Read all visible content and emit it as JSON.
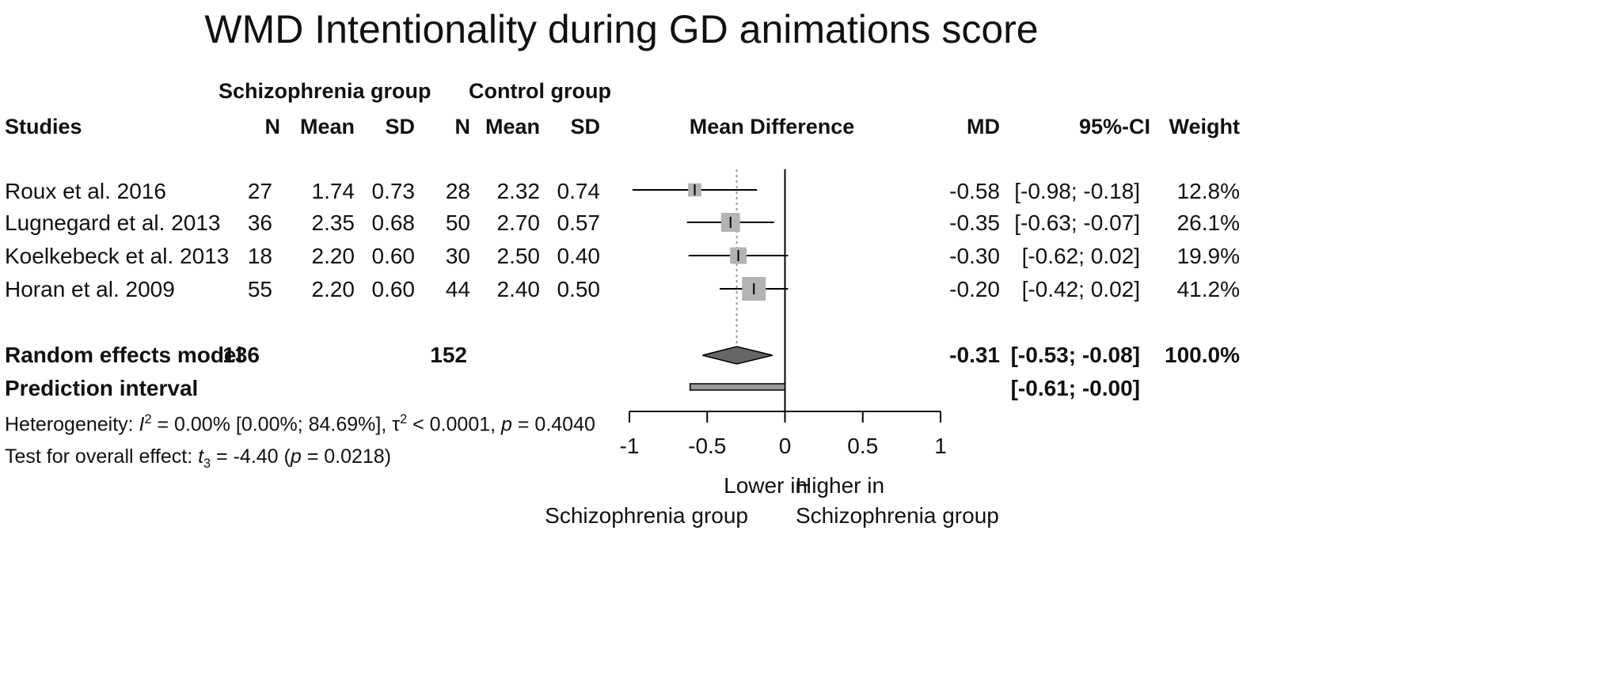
{
  "chart_data": {
    "type": "forest",
    "title": "WMD Intentionality during GD animations score",
    "group_headers": {
      "experimental": "Schizophrenia group",
      "control": "Control group"
    },
    "columns": {
      "studies": "Studies",
      "n1": "N",
      "mean1": "Mean",
      "sd1": "SD",
      "n2": "N",
      "mean2": "Mean",
      "sd2": "SD",
      "plot": "Mean Difference",
      "md": "MD",
      "ci": "95%-CI",
      "weight": "Weight"
    },
    "studies": [
      {
        "name": "Roux et al. 2016",
        "n1": "27",
        "mean1": "1.74",
        "sd1": "0.73",
        "n2": "28",
        "mean2": "2.32",
        "sd2": "0.74",
        "md": -0.58,
        "lower": -0.98,
        "upper": -0.18,
        "md_text": "-0.58",
        "ci_text": "[-0.98; -0.18]",
        "weight": 12.8,
        "weight_text": "12.8%"
      },
      {
        "name": "Lugnegard et al. 2013",
        "n1": "36",
        "mean1": "2.35",
        "sd1": "0.68",
        "n2": "50",
        "mean2": "2.70",
        "sd2": "0.57",
        "md": -0.35,
        "lower": -0.63,
        "upper": -0.07,
        "md_text": "-0.35",
        "ci_text": "[-0.63; -0.07]",
        "weight": 26.1,
        "weight_text": "26.1%"
      },
      {
        "name": "Koelkebeck et al. 2013",
        "n1": "18",
        "mean1": "2.20",
        "sd1": "0.60",
        "n2": "30",
        "mean2": "2.50",
        "sd2": "0.40",
        "md": -0.3,
        "lower": -0.62,
        "upper": 0.02,
        "md_text": "-0.30",
        "ci_text": "[-0.62; 0.02]",
        "weight": 19.9,
        "weight_text": "19.9%"
      },
      {
        "name": "Horan et al. 2009",
        "n1": "55",
        "mean1": "2.20",
        "sd1": "0.60",
        "n2": "44",
        "mean2": "2.40",
        "sd2": "0.50",
        "md": -0.2,
        "lower": -0.42,
        "upper": 0.02,
        "md_text": "-0.20",
        "ci_text": "[-0.42; 0.02]",
        "weight": 41.2,
        "weight_text": "41.2%"
      }
    ],
    "pooled": {
      "label": "Random effects model",
      "n1": "136",
      "n2": "152",
      "md": -0.31,
      "lower": -0.53,
      "upper": -0.08,
      "md_text": "-0.31",
      "ci_text": "[-0.53; -0.08]",
      "weight_text": "100.0%"
    },
    "prediction": {
      "label": "Prediction interval",
      "lower": -0.61,
      "upper": 0.0,
      "ci_text": "[-0.61; -0.00]"
    },
    "heterogeneity": {
      "prefix": "Heterogeneity: ",
      "i2_symbol": "I",
      "i2_sup": "2",
      "i2_text": " = 0.00% [0.00%; 84.69%], ",
      "tau_symbol": "τ",
      "tau_sup": "2",
      "tau_text": " < 0.0001, ",
      "p_symbol": "p",
      "p_text": " = 0.4040"
    },
    "overall_effect": {
      "prefix": "Test for overall effect: ",
      "t_symbol": "t",
      "t_sub": "3",
      "t_text": " = -4.40 (",
      "p_symbol": "p",
      "p_text": " = 0.0218)"
    },
    "xaxis": {
      "min": -1,
      "max": 1,
      "ticks": [
        -1,
        -0.5,
        0,
        0.5,
        1
      ],
      "tick_labels": [
        "-1",
        "-0.5",
        "0",
        "0.5",
        "1"
      ]
    },
    "direction_labels": {
      "left": [
        "Lower in",
        "Schizophrenia group"
      ],
      "right": [
        "Higher in",
        "Schizophrenia group"
      ]
    },
    "colors": {
      "square": "#b3b3b3",
      "diamond": "#666666",
      "line": "#000000",
      "pooled_line": "#999999"
    }
  }
}
